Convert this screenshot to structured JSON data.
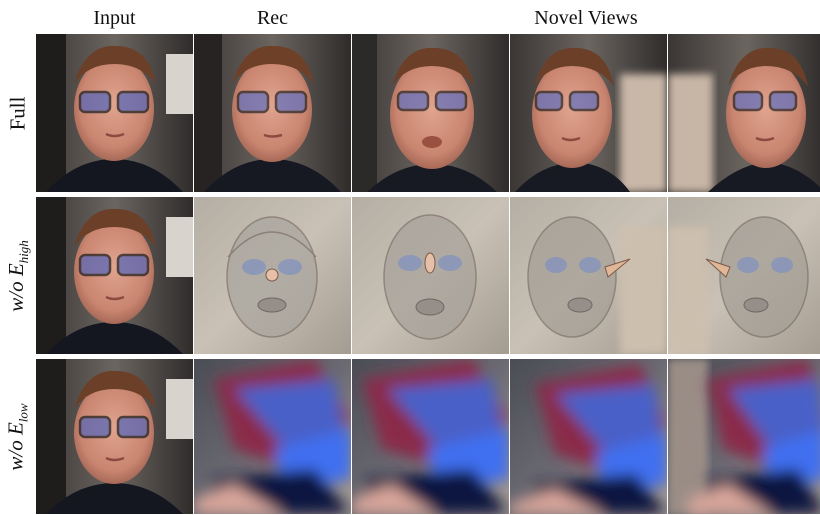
{
  "headers": {
    "input": "Input",
    "rec": "Rec",
    "novel": "Novel Views"
  },
  "rows": [
    {
      "label_main": "Full",
      "label_prefix": "",
      "label_sub": ""
    },
    {
      "label_main": "",
      "label_prefix": "w/o E",
      "label_sub": "high"
    },
    {
      "label_main": "",
      "label_prefix": "w/o E",
      "label_sub": "low"
    }
  ],
  "images": {
    "row1": [
      "input face photo",
      "reconstructed face",
      "novel view face frontal-up",
      "novel view face turned left",
      "novel view face turned right"
    ],
    "row2": [
      "input face photo",
      "ghostly reconstruction",
      "ghostly novel view",
      "ghostly novel view left",
      "ghostly novel view right"
    ],
    "row3": [
      "input face photo",
      "blurred red-blue reconstruction",
      "blurred novel view",
      "blurred novel view",
      "blurred novel view"
    ]
  }
}
